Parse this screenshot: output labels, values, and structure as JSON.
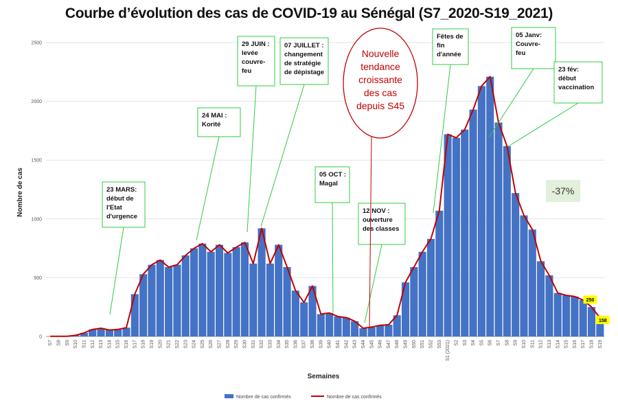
{
  "chart_data": {
    "type": "bar",
    "title": "Courbe d’évolution des cas de COVID-19 au Sénégal (S7_2020-S19_2021)",
    "xlabel": "Semaines",
    "ylabel": "Nombre de cas",
    "ylim": [
      0,
      2500
    ],
    "yticks": [
      0,
      500,
      1000,
      1500,
      2000,
      2500
    ],
    "grid": true,
    "legend_position": "bottom",
    "categories": [
      "S7",
      "S8",
      "S9",
      "S10",
      "S11",
      "S12",
      "S13",
      "S14",
      "S15",
      "S16",
      "S17",
      "S18",
      "S19",
      "S20",
      "S21",
      "S22",
      "S23",
      "S24",
      "S25",
      "S26",
      "S27",
      "S28",
      "S29",
      "S30",
      "S31",
      "S32",
      "S33",
      "S34",
      "S35",
      "S36",
      "S37",
      "S38",
      "S39",
      "S40",
      "S41",
      "S42",
      "S43",
      "S44",
      "S45",
      "S46",
      "S47",
      "S48",
      "S49",
      "S50",
      "S51",
      "S52",
      "S53",
      "S1 (2021)",
      "S2",
      "S3",
      "S4",
      "S5",
      "S6",
      "S7",
      "S8",
      "S9",
      "S10",
      "S11",
      "S12",
      "S13",
      "S14",
      "S15",
      "S16",
      "S17",
      "S18",
      "S19"
    ],
    "tick_labels": [
      "S7",
      "S8",
      "S9",
      "S10",
      "S11",
      "S12",
      "S13",
      "S14",
      "S15",
      "S16",
      "S17",
      "S18",
      "S19",
      "S20",
      "S21",
      "S22",
      "S23",
      "S24",
      "S25",
      "S26",
      "S27",
      "S28",
      "S29",
      "S30",
      "S31",
      "S32",
      "S33",
      "S34",
      "S35",
      "S36",
      "S37",
      "S38",
      "S39",
      "S40",
      "S41",
      "S42",
      "S43",
      "S44",
      "S45",
      "S46",
      "S47",
      "S48",
      "S49",
      "S50",
      "S51",
      "S52",
      "S53",
      "S1 (2021)",
      "S2",
      "S3",
      "S4",
      "S5",
      "S6",
      "S7",
      "S8",
      "S9",
      "S10",
      "S11",
      "S12",
      "S13",
      "S14",
      "S15",
      "S16",
      "S17",
      "S18",
      "S19"
    ],
    "series": [
      {
        "name": "Nombre de cas confirmés",
        "kind": "bar",
        "color": "#4472c4",
        "values": [
          1,
          1,
          2,
          10,
          30,
          60,
          70,
          55,
          60,
          75,
          360,
          530,
          610,
          650,
          590,
          610,
          690,
          750,
          790,
          720,
          780,
          710,
          760,
          800,
          620,
          920,
          620,
          780,
          590,
          390,
          290,
          430,
          190,
          200,
          170,
          160,
          130,
          70,
          80,
          95,
          100,
          180,
          460,
          590,
          720,
          830,
          1070,
          1720,
          1690,
          1760,
          1930,
          2130,
          2210,
          1820,
          1620,
          1220,
          1030,
          910,
          640,
          520,
          370,
          350,
          340,
          310,
          250,
          158
        ]
      },
      {
        "name": "Nombre de cas confirmés",
        "kind": "line",
        "color": "#c00000",
        "values": [
          1,
          1,
          2,
          10,
          30,
          60,
          70,
          55,
          60,
          75,
          360,
          530,
          610,
          650,
          590,
          610,
          690,
          750,
          790,
          720,
          780,
          710,
          760,
          800,
          620,
          920,
          620,
          780,
          590,
          390,
          290,
          430,
          190,
          200,
          170,
          160,
          130,
          70,
          80,
          95,
          100,
          180,
          460,
          590,
          720,
          830,
          1070,
          1720,
          1690,
          1760,
          1930,
          2130,
          2210,
          1820,
          1620,
          1220,
          1030,
          910,
          640,
          520,
          370,
          350,
          340,
          310,
          250,
          158
        ]
      }
    ],
    "data_labels": [
      {
        "text": "250",
        "category": "S18",
        "value": 250
      },
      {
        "text": "158",
        "category": "S19",
        "value": 158
      }
    ],
    "annotations": [
      {
        "lines": [
          "23 MARS:",
          "début de",
          "l'Etat",
          "d'urgence"
        ],
        "target": "S14"
      },
      {
        "lines": [
          "24 MAI :",
          "Korité"
        ],
        "target": "S25"
      },
      {
        "lines": [
          "29 JUIN :",
          "levée",
          "couvre-",
          "feu"
        ],
        "target": "S30"
      },
      {
        "lines": [
          "07 JUILLET :",
          "changement",
          "de stratégie",
          "de dépistage"
        ],
        "target": "S31"
      },
      {
        "lines": [
          "05 OCT :",
          "Magal"
        ],
        "target": "S41"
      },
      {
        "lines": [
          "12 NOV :",
          "ouverture",
          "des classes"
        ],
        "target": "S45"
      },
      {
        "lines": [
          "Fêtes de",
          "fin",
          "d'année"
        ],
        "target": "S53"
      },
      {
        "lines": [
          "05 Janv:",
          "Couvre-",
          "feu"
        ],
        "target": "S2"
      },
      {
        "lines": [
          "23 fév:",
          "début",
          "vaccination"
        ],
        "target": "S8"
      }
    ],
    "callout": {
      "lines": [
        "Nouvelle",
        "tendance",
        "croissante",
        "des cas",
        "depuis S45"
      ],
      "target": "S45",
      "color": "#c00000"
    },
    "change_badge": {
      "text": "-37%",
      "color": "#e2efda"
    }
  }
}
